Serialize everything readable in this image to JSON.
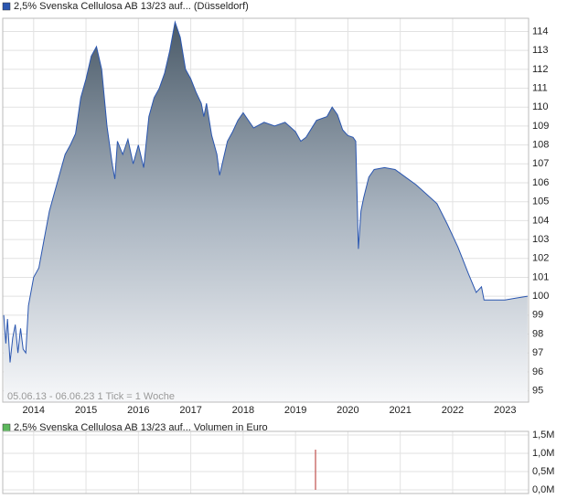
{
  "chart_data": [
    {
      "type": "area",
      "series": [
        {
          "name": "2,5% Svenska Cellulosa AB 13/23 auf... (Düsseldorf)",
          "color": "#2a56b0",
          "x": [
            2013.43,
            2013.47,
            2013.5,
            2013.55,
            2013.6,
            2013.65,
            2013.7,
            2013.75,
            2013.8,
            2013.85,
            2013.9,
            2014.0,
            2014.1,
            2014.2,
            2014.3,
            2014.4,
            2014.5,
            2014.6,
            2014.7,
            2014.8,
            2014.9,
            2015.0,
            2015.1,
            2015.2,
            2015.3,
            2015.4,
            2015.5,
            2015.55,
            2015.6,
            2015.7,
            2015.8,
            2015.9,
            2016.0,
            2016.1,
            2016.2,
            2016.3,
            2016.4,
            2016.5,
            2016.6,
            2016.7,
            2016.8,
            2016.9,
            2017.0,
            2017.1,
            2017.2,
            2017.25,
            2017.3,
            2017.4,
            2017.5,
            2017.55,
            2017.6,
            2017.7,
            2017.8,
            2017.9,
            2018.0,
            2018.2,
            2018.4,
            2018.6,
            2018.8,
            2019.0,
            2019.1,
            2019.2,
            2019.4,
            2019.6,
            2019.7,
            2019.8,
            2019.9,
            2020.0,
            2020.1,
            2020.15,
            2020.2,
            2020.25,
            2020.3,
            2020.4,
            2020.5,
            2020.7,
            2020.9,
            2021.1,
            2021.3,
            2021.5,
            2021.7,
            2021.9,
            2022.1,
            2022.3,
            2022.45,
            2022.55,
            2022.6,
            2022.8,
            2023.0,
            2023.2,
            2023.43
          ],
          "values": [
            99.0,
            97.5,
            98.8,
            96.5,
            97.8,
            98.5,
            97.0,
            98.3,
            97.2,
            97.0,
            99.5,
            101.0,
            101.5,
            103,
            104.5,
            105.5,
            106.5,
            107.5,
            108,
            108.6,
            110.5,
            111.5,
            112.7,
            113.2,
            112,
            109,
            107,
            106.2,
            108.2,
            107.5,
            108.3,
            107,
            108,
            106.8,
            109.5,
            110.5,
            111,
            111.8,
            113,
            114.5,
            113.7,
            112,
            111.5,
            110.8,
            110.2,
            109.5,
            110.2,
            108.5,
            107.5,
            106.4,
            107,
            108.2,
            108.7,
            109.3,
            109.7,
            108.9,
            109.2,
            109.0,
            109.2,
            108.7,
            108.2,
            108.4,
            109.3,
            109.5,
            110.0,
            109.6,
            108.8,
            108.5,
            108.4,
            108.2,
            102.5,
            104.5,
            105.2,
            106.3,
            106.7,
            106.8,
            106.7,
            106.3,
            105.9,
            105.4,
            104.9,
            103.8,
            102.6,
            101.2,
            100.2,
            100.5,
            99.8,
            99.8,
            99.8,
            99.9,
            100.0
          ]
        }
      ],
      "xlim": [
        2013.41,
        2023.45
      ],
      "xticks": [
        2014,
        2015,
        2016,
        2017,
        2018,
        2019,
        2020,
        2021,
        2022,
        2023
      ],
      "ylim": [
        94.4,
        114.7
      ],
      "yticks": [
        95,
        96,
        97,
        98,
        99,
        100,
        101,
        102,
        103,
        104,
        105,
        106,
        107,
        108,
        109,
        110,
        111,
        112,
        113,
        114
      ],
      "grid": true,
      "annotation": "05.06.13 - 06.06.23   1 Tick = 1 Woche"
    },
    {
      "type": "bar",
      "series": [
        {
          "name": "2,5% Svenska Cellulosa AB 13/23 auf... Volumen in Euro",
          "color": "#5cb85c",
          "bar_color": "#c0504d",
          "x": [
            2019.38
          ],
          "values": [
            1100000
          ]
        }
      ],
      "xlim": [
        2013.41,
        2023.45
      ],
      "ylim": [
        0,
        1500000
      ],
      "yticks": [
        {
          "value": 0,
          "label": "0,0M"
        },
        {
          "value": 500000,
          "label": "0,5M"
        },
        {
          "value": 1000000,
          "label": "1,0M"
        },
        {
          "value": 1500000,
          "label": "1,5M"
        }
      ],
      "grid": true
    }
  ]
}
